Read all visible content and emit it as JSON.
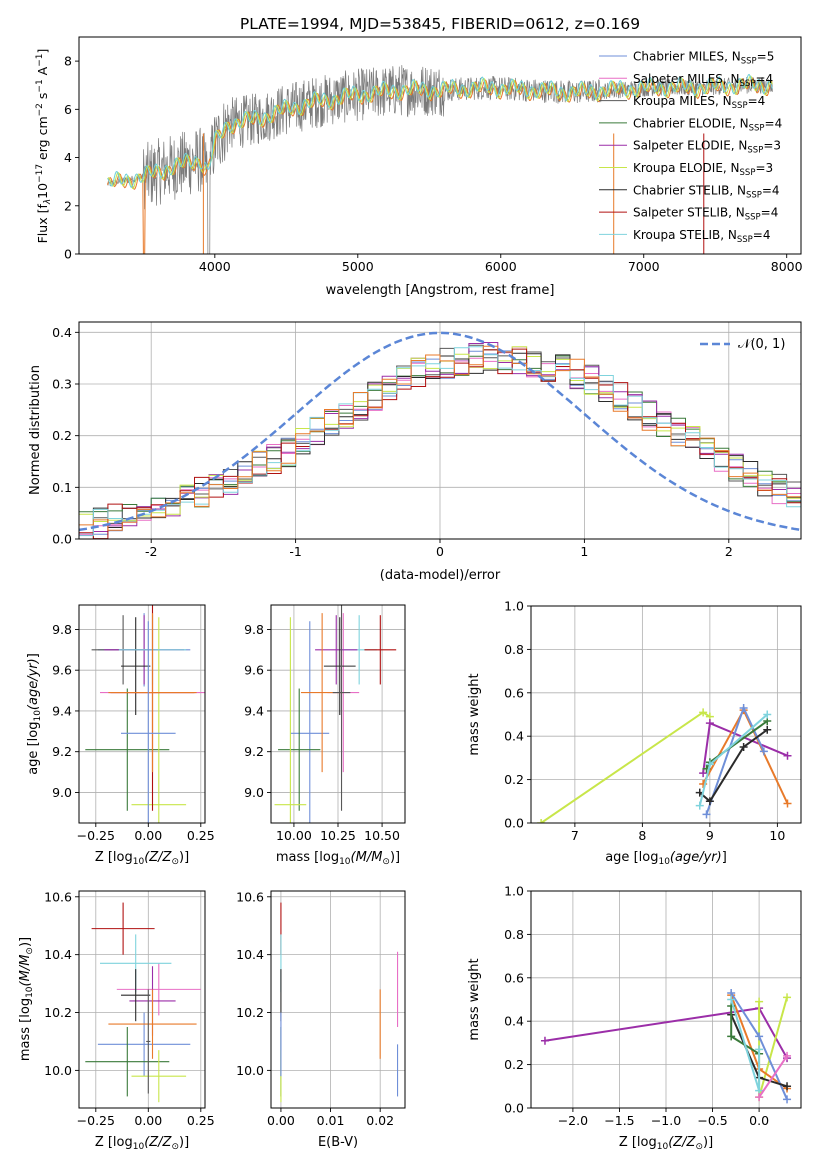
{
  "figure_title": "PLATE=1994, MJD=53845, FIBERID=0612, z=0.169",
  "palette": {
    "chab_miles": "#6f8fd8",
    "salp_miles": "#e86fc6",
    "krou_miles": "#585858",
    "chab_elodie": "#3a7a3a",
    "salp_elodie": "#9b2ea8",
    "krou_elodie": "#c8e64a",
    "chab_stelib": "#2b2b2b",
    "salp_stelib": "#b01010",
    "krou_stelib": "#7fd3dd",
    "orange": "#e87a2a",
    "model_fit": "#6ecfd8",
    "data": "#7a7a7a",
    "gauss": "#5b86d6"
  },
  "chart_data": [
    {
      "type": "line",
      "panel": "spectrum",
      "xlabel": "wavelength [Angstrom, rest frame]",
      "ylabel": "Flux [f$_\\lambda$10$^{-17}$ erg cm$^{-2}$ s$^{-1}$ A$^{-1}$]",
      "ylabel_main": "Flux [f",
      "ylabel_sub1": "λ",
      "ylabel_mid": "10",
      "ylabel_sup1": "−17",
      "ylabel_mid2": " erg cm",
      "ylabel_sup2": "−2",
      "ylabel_mid3": " s",
      "ylabel_sup3": "−1",
      "ylabel_mid4": " A",
      "ylabel_sup4": "−1",
      "ylabel_end": "]",
      "xlim": [
        3050,
        8100
      ],
      "ylim": [
        0,
        9
      ],
      "xticks": [
        4000,
        5000,
        6000,
        7000,
        8000
      ],
      "yticks": [
        0,
        2,
        4,
        6,
        8
      ],
      "legend_position": "top-right",
      "legend": [
        {
          "prefix": "Chabrier MILES, N",
          "sub": "SSP",
          "suffix": "=5",
          "color_key": "chab_miles"
        },
        {
          "prefix": "Salpeter MILES, N",
          "sub": "SSP",
          "suffix": "=4",
          "color_key": "salp_miles"
        },
        {
          "prefix": "Kroupa MILES, N",
          "sub": "SSP",
          "suffix": "=4",
          "color_key": "krou_miles"
        },
        {
          "prefix": "Chabrier ELODIE, N",
          "sub": "SSP",
          "suffix": "=4",
          "color_key": "chab_elodie"
        },
        {
          "prefix": "Salpeter ELODIE, N",
          "sub": "SSP",
          "suffix": "=3",
          "color_key": "salp_elodie"
        },
        {
          "prefix": "Kroupa ELODIE, N",
          "sub": "SSP",
          "suffix": "=3",
          "color_key": "krou_elodie"
        },
        {
          "prefix": "Chabrier STELIB, N",
          "sub": "SSP",
          "suffix": "=4",
          "color_key": "chab_stelib"
        },
        {
          "prefix": "Salpeter STELIB, N",
          "sub": "SSP",
          "suffix": "=4",
          "color_key": "salp_stelib"
        },
        {
          "prefix": "Kroupa STELIB, N",
          "sub": "SSP",
          "suffix": "=4",
          "color_key": "krou_stelib"
        }
      ],
      "continuum_approx": [
        [
          3250,
          2.9
        ],
        [
          3500,
          3.2
        ],
        [
          3700,
          3.6
        ],
        [
          3900,
          3.9
        ],
        [
          3950,
          3.4
        ],
        [
          4000,
          4.6
        ],
        [
          4100,
          5.4
        ],
        [
          4300,
          5.6
        ],
        [
          4500,
          6.0
        ],
        [
          4700,
          6.3
        ],
        [
          5000,
          6.6
        ],
        [
          5300,
          6.8
        ],
        [
          5600,
          6.8
        ],
        [
          5900,
          6.9
        ],
        [
          6200,
          6.8
        ],
        [
          6500,
          6.7
        ],
        [
          6800,
          6.8
        ],
        [
          7100,
          6.9
        ],
        [
          7400,
          6.9
        ],
        [
          7700,
          7.0
        ],
        [
          7900,
          7.0
        ]
      ]
    },
    {
      "type": "line",
      "panel": "residual-histogram",
      "xlabel": "(data-model)/error",
      "ylabel": "Normed distribution",
      "xlim": [
        -2.5,
        2.5
      ],
      "ylim": [
        0,
        0.42
      ],
      "xticks": [
        -2,
        -1,
        0,
        1,
        2
      ],
      "yticks": [
        0.0,
        0.1,
        0.2,
        0.3,
        0.4
      ],
      "grid": true,
      "legend_position": "top-right",
      "gaussian_label": "𝒩(0, 1)",
      "bin_edges_start": -2.5,
      "bin_width": 0.1,
      "base_counts": [
        0.025,
        0.03,
        0.038,
        0.048,
        0.055,
        0.062,
        0.07,
        0.08,
        0.09,
        0.1,
        0.112,
        0.125,
        0.14,
        0.155,
        0.17,
        0.19,
        0.21,
        0.225,
        0.24,
        0.255,
        0.275,
        0.29,
        0.31,
        0.32,
        0.33,
        0.34,
        0.345,
        0.35,
        0.352,
        0.35,
        0.345,
        0.34,
        0.335,
        0.33,
        0.32,
        0.31,
        0.29,
        0.275,
        0.26,
        0.24,
        0.225,
        0.205,
        0.19,
        0.17,
        0.155,
        0.14,
        0.125,
        0.11,
        0.095,
        0.082
      ]
    },
    {
      "type": "scatter",
      "panel": "age-vs-Z",
      "xlabel": "Z [log",
      "xlabel_sub": "10",
      "xlabel_italic": "(Z/Z",
      "xlabel_end": ")]",
      "ylabel": "age [log",
      "ylabel_sub": "10",
      "ylabel_italic": "(age/yr)",
      "ylabel_end": "]",
      "xlim": [
        -0.33,
        0.27
      ],
      "ylim": [
        8.85,
        9.92
      ],
      "xticks": [
        -0.25,
        0.0,
        0.25
      ],
      "xticklabels": [
        "−0.25",
        "0.00",
        "0.25"
      ],
      "yticks": [
        9.0,
        9.2,
        9.4,
        9.6,
        9.8
      ],
      "points": [
        {
          "x": -0.02,
          "y": 9.7,
          "xerr": 0.22,
          "yerr": 0.18,
          "color_key": "chab_miles"
        },
        {
          "x": 0.02,
          "y": 9.49,
          "xerr": 0.25,
          "yerr": 0.39,
          "color_key": "salp_miles"
        },
        {
          "x": -0.12,
          "y": 9.7,
          "xerr": 0.15,
          "yerr": 0.17,
          "color_key": "krou_miles"
        },
        {
          "x": -0.1,
          "y": 9.21,
          "xerr": 0.2,
          "yerr": 0.3,
          "color_key": "chab_elodie"
        },
        {
          "x": -0.02,
          "y": 9.7,
          "xerr": 0.19,
          "yerr": 0.17,
          "color_key": "salp_elodie"
        },
        {
          "x": 0.05,
          "y": 8.94,
          "xerr": 0.13,
          "yerr": 0.92,
          "color_key": "krou_elodie"
        },
        {
          "x": -0.06,
          "y": 9.62,
          "xerr": 0.07,
          "yerr": 0.24,
          "color_key": "chab_stelib"
        },
        {
          "x": 0.02,
          "y": 9.49,
          "xerr": 0.2,
          "yerr": 0.58,
          "color_key": "salp_stelib"
        },
        {
          "x": 0.02,
          "y": 9.7,
          "xerr": 0.16,
          "yerr": 0.17,
          "color_key": "krou_stelib"
        },
        {
          "x": 0.02,
          "y": 9.49,
          "xerr": 0.21,
          "yerr": 0.39,
          "color_key": "orange"
        },
        {
          "x": 0.0,
          "y": 9.29,
          "xerr": 0.13,
          "yerr": 0.55,
          "color_key": "chab_miles"
        }
      ]
    },
    {
      "type": "scatter",
      "panel": "age-vs-mass",
      "xlabel": "mass [log",
      "xlabel_sub": "10",
      "xlabel_italic": "(M/M",
      "xlabel_end": ")]",
      "xlim": [
        9.87,
        10.63
      ],
      "ylim": [
        8.85,
        9.92
      ],
      "xticks": [
        10.0,
        10.25,
        10.5
      ],
      "xticklabels": [
        "10.00",
        "10.25",
        "10.50"
      ],
      "yticks": [
        9.0,
        9.2,
        9.4,
        9.6,
        9.8
      ],
      "points": [
        {
          "x": 10.09,
          "y": 9.29,
          "xerr": 0.11,
          "yerr": 0.55,
          "color_key": "chab_miles"
        },
        {
          "x": 10.28,
          "y": 9.49,
          "xerr": 0.09,
          "yerr": 0.39,
          "color_key": "salp_miles"
        },
        {
          "x": 10.37,
          "y": 9.7,
          "xerr": 0.1,
          "yerr": 0.17,
          "color_key": "krou_stelib"
        },
        {
          "x": 10.03,
          "y": 9.21,
          "xerr": 0.12,
          "yerr": 0.3,
          "color_key": "chab_elodie"
        },
        {
          "x": 10.24,
          "y": 9.7,
          "xerr": 0.12,
          "yerr": 0.17,
          "color_key": "salp_elodie"
        },
        {
          "x": 9.98,
          "y": 8.94,
          "xerr": 0.09,
          "yerr": 0.92,
          "color_key": "krou_elodie"
        },
        {
          "x": 10.26,
          "y": 9.62,
          "xerr": 0.09,
          "yerr": 0.24,
          "color_key": "chab_stelib"
        },
        {
          "x": 10.49,
          "y": 9.7,
          "xerr": 0.09,
          "yerr": 0.17,
          "color_key": "salp_stelib"
        },
        {
          "x": 10.16,
          "y": 9.49,
          "xerr": 0.12,
          "yerr": 0.39,
          "color_key": "orange"
        },
        {
          "x": 10.27,
          "y": 9.49,
          "xerr": 0.05,
          "yerr": 0.58,
          "color_key": "krou_miles"
        }
      ]
    },
    {
      "type": "line",
      "panel": "mass-weight-vs-age",
      "xlabel": "age [log",
      "xlabel_sub": "10",
      "xlabel_italic": "(age/yr)",
      "xlabel_end": "]",
      "ylabel": "mass weight",
      "xlim": [
        6.35,
        10.35
      ],
      "ylim": [
        0,
        1.0
      ],
      "xticks": [
        7,
        8,
        9,
        10
      ],
      "yticks": [
        0.0,
        0.2,
        0.4,
        0.6,
        0.8,
        1.0
      ],
      "series": [
        {
          "color_key": "krou_elodie",
          "x": [
            6.5,
            8.9,
            9.0
          ],
          "y": [
            0.0,
            0.51,
            0.49
          ]
        },
        {
          "color_key": "salp_elodie",
          "x": [
            8.9,
            9.0,
            10.15
          ],
          "y": [
            0.23,
            0.46,
            0.31
          ]
        },
        {
          "color_key": "orange",
          "x": [
            8.9,
            9.5,
            10.15
          ],
          "y": [
            0.18,
            0.52,
            0.09
          ]
        },
        {
          "color_key": "chab_miles",
          "x": [
            8.95,
            9.5,
            9.8
          ],
          "y": [
            0.04,
            0.53,
            0.33
          ]
        },
        {
          "color_key": "chab_stelib",
          "x": [
            8.85,
            9.0,
            9.5,
            9.85
          ],
          "y": [
            0.14,
            0.1,
            0.35,
            0.43
          ]
        },
        {
          "color_key": "chab_elodie",
          "x": [
            8.95,
            9.0,
            9.85
          ],
          "y": [
            0.25,
            0.28,
            0.47
          ]
        },
        {
          "color_key": "krou_stelib",
          "x": [
            8.85,
            9.0,
            9.85
          ],
          "y": [
            0.08,
            0.27,
            0.5
          ]
        }
      ]
    },
    {
      "type": "scatter",
      "panel": "mass-vs-Z",
      "xlabel": "Z [log",
      "xlabel_sub": "10",
      "xlabel_italic": "(Z/Z",
      "xlabel_end": ")]",
      "ylabel": "mass [log",
      "ylabel_sub": "10",
      "ylabel_italic": "(M/M",
      "ylabel_end": ")]",
      "xlim": [
        -0.33,
        0.27
      ],
      "ylim": [
        9.87,
        10.62
      ],
      "xticks": [
        -0.25,
        0.0,
        0.25
      ],
      "xticklabels": [
        "−0.25",
        "0.00",
        "0.25"
      ],
      "yticks": [
        10.0,
        10.2,
        10.4,
        10.6
      ],
      "points": [
        {
          "x": -0.02,
          "y": 10.09,
          "xerr": 0.22,
          "yerr": 0.11,
          "color_key": "chab_miles"
        },
        {
          "x": 0.05,
          "y": 10.28,
          "xerr": 0.2,
          "yerr": 0.09,
          "color_key": "salp_miles"
        },
        {
          "x": -0.06,
          "y": 10.37,
          "xerr": 0.17,
          "yerr": 0.1,
          "color_key": "krou_stelib"
        },
        {
          "x": -0.1,
          "y": 10.03,
          "xerr": 0.2,
          "yerr": 0.12,
          "color_key": "chab_elodie"
        },
        {
          "x": 0.02,
          "y": 10.24,
          "xerr": 0.11,
          "yerr": 0.12,
          "color_key": "salp_elodie"
        },
        {
          "x": 0.05,
          "y": 9.98,
          "xerr": 0.13,
          "yerr": 0.09,
          "color_key": "krou_elodie"
        },
        {
          "x": -0.06,
          "y": 10.26,
          "xerr": 0.07,
          "yerr": 0.09,
          "color_key": "chab_stelib"
        },
        {
          "x": -0.12,
          "y": 10.49,
          "xerr": 0.15,
          "yerr": 0.09,
          "color_key": "salp_stelib"
        },
        {
          "x": 0.02,
          "y": 10.16,
          "xerr": 0.21,
          "yerr": 0.12,
          "color_key": "orange"
        },
        {
          "x": 0.0,
          "y": 10.1,
          "xerr": 0.01,
          "yerr": 0.18,
          "color_key": "krou_miles"
        }
      ]
    },
    {
      "type": "scatter",
      "panel": "mass-vs-EBV",
      "xlabel": "E(B-V)",
      "xlim": [
        -0.002,
        0.025
      ],
      "ylim": [
        9.87,
        10.62
      ],
      "xticks": [
        0.0,
        0.01,
        0.02
      ],
      "xticklabels": [
        "0.00",
        "0.01",
        "0.02"
      ],
      "yticks": [
        10.0,
        10.2,
        10.4,
        10.6
      ],
      "points": [
        {
          "x": 0.0,
          "y": 10.49,
          "yerr": 0.09,
          "color_key": "salp_stelib"
        },
        {
          "x": 0.0,
          "y": 10.37,
          "yerr": 0.1,
          "color_key": "krou_stelib"
        },
        {
          "x": 0.0,
          "y": 10.26,
          "yerr": 0.09,
          "color_key": "chab_stelib"
        },
        {
          "x": 0.0,
          "y": 10.03,
          "yerr": 0.12,
          "color_key": "chab_elodie"
        },
        {
          "x": 0.0,
          "y": 9.98,
          "yerr": 0.09,
          "color_key": "krou_elodie"
        },
        {
          "x": 0.0,
          "y": 10.09,
          "yerr": 0.11,
          "color_key": "chab_miles"
        },
        {
          "x": 0.02,
          "y": 10.16,
          "yerr": 0.12,
          "color_key": "orange"
        },
        {
          "x": 0.0235,
          "y": 10.28,
          "yerr": 0.13,
          "color_key": "salp_miles"
        },
        {
          "x": 0.0235,
          "y": 10.0,
          "yerr": 0.09,
          "color_key": "chab_miles"
        }
      ]
    },
    {
      "type": "line",
      "panel": "mass-weight-vs-Z",
      "xlabel": "Z [log",
      "xlabel_sub": "10",
      "xlabel_italic": "(Z/Z",
      "xlabel_end": ")]",
      "ylabel": "mass weight",
      "xlim": [
        -2.45,
        0.45
      ],
      "ylim": [
        0,
        1.0
      ],
      "xticks": [
        -2.0,
        -1.5,
        -1.0,
        -0.5,
        0.0
      ],
      "xticklabels": [
        "−2.0",
        "−1.5",
        "−1.0",
        "−0.5",
        "0.0"
      ],
      "yticks": [
        0.0,
        0.2,
        0.4,
        0.6,
        0.8,
        1.0
      ],
      "series": [
        {
          "color_key": "salp_elodie",
          "x": [
            -2.3,
            0.0,
            0.3
          ],
          "y": [
            0.31,
            0.46,
            0.23
          ]
        },
        {
          "color_key": "krou_elodie",
          "x": [
            0.0,
            0.0,
            0.3
          ],
          "y": [
            0.49,
            0.05,
            0.51
          ]
        },
        {
          "color_key": "orange",
          "x": [
            -0.3,
            0.0,
            0.3
          ],
          "y": [
            0.52,
            0.18,
            0.09
          ]
        },
        {
          "color_key": "chab_miles",
          "x": [
            -0.3,
            0.0,
            0.3
          ],
          "y": [
            0.53,
            0.33,
            0.04
          ]
        },
        {
          "color_key": "chab_stelib",
          "x": [
            -0.3,
            0.0,
            0.3
          ],
          "y": [
            0.43,
            0.14,
            0.1
          ]
        },
        {
          "color_key": "chab_elodie",
          "x": [
            -0.3,
            -0.3,
            0.0
          ],
          "y": [
            0.47,
            0.33,
            0.25
          ]
        },
        {
          "color_key": "krou_stelib",
          "x": [
            -0.3,
            0.0,
            0.0
          ],
          "y": [
            0.5,
            0.08,
            0.27
          ]
        },
        {
          "color_key": "salp_miles",
          "x": [
            0.0,
            0.3
          ],
          "y": [
            0.05,
            0.24
          ]
        }
      ]
    }
  ]
}
